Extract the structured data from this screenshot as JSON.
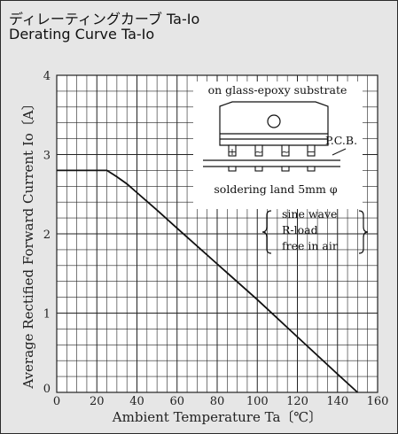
{
  "header": {
    "title_ja": "ディレーティングカーブ Ta-Io",
    "title_en": "Derating Curve Ta-Io"
  },
  "colors": {
    "panel_background": "#e6e6e6",
    "plot_background": "#ffffff",
    "grid": "#222222",
    "curve": "#111111"
  },
  "chart_data": {
    "type": "line",
    "xlabel": "Ambient Temperature Ta〔℃〕",
    "ylabel": "Average Rectified Forward Current Io〔A〕",
    "xlim": [
      0,
      160
    ],
    "ylim": [
      0,
      4
    ],
    "x_ticks": [
      "0",
      "20",
      "40",
      "60",
      "80",
      "100",
      "120",
      "140",
      "160"
    ],
    "y_ticks": [
      "0",
      "1",
      "2",
      "3",
      "4"
    ],
    "grid": "on (minor every 5 ℃ and 0.2 A)",
    "series": [
      {
        "x": [
          0,
          25,
          30,
          35,
          40,
          50,
          60,
          80,
          100,
          120,
          140,
          150
        ],
        "y": [
          2.8,
          2.8,
          2.72,
          2.63,
          2.52,
          2.3,
          2.07,
          1.62,
          1.17,
          0.7,
          0.23,
          0
        ]
      }
    ],
    "annotations": {
      "substrate": "on glass-epoxy substrate",
      "pcb": "P.C.B.",
      "soldering": "soldering land 5mm φ",
      "conditions": [
        "sine wave",
        "R-load",
        "free in air"
      ],
      "pin_signs": [
        "+",
        "~",
        "~",
        "−"
      ]
    }
  }
}
